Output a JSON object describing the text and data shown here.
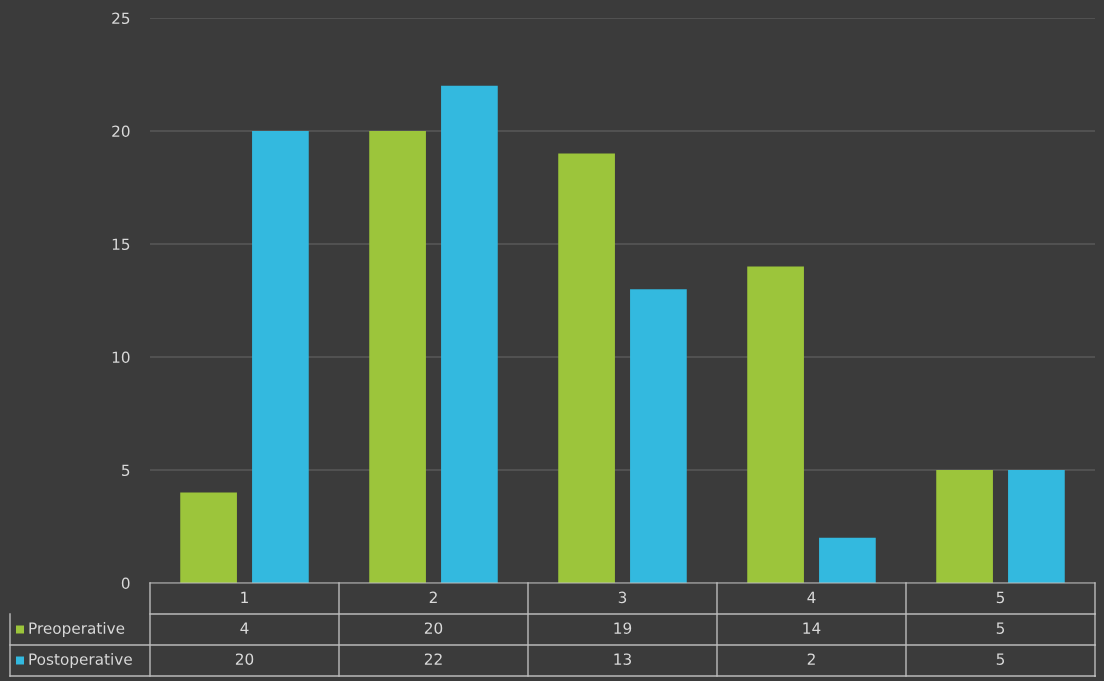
{
  "chart_data": {
    "type": "bar",
    "categories": [
      "1",
      "2",
      "3",
      "4",
      "5"
    ],
    "series": [
      {
        "name": "Preoperative",
        "color": "#9cc53b",
        "values": [
          4,
          20,
          19,
          14,
          5
        ]
      },
      {
        "name": "Postoperative",
        "color": "#33b9df",
        "values": [
          20,
          22,
          13,
          2,
          5
        ]
      }
    ],
    "ylim": [
      0,
      25
    ],
    "yticks": [
      0,
      5,
      10,
      15,
      20,
      25
    ],
    "grid": "y",
    "data_labels": true,
    "legend": "bottom left"
  }
}
